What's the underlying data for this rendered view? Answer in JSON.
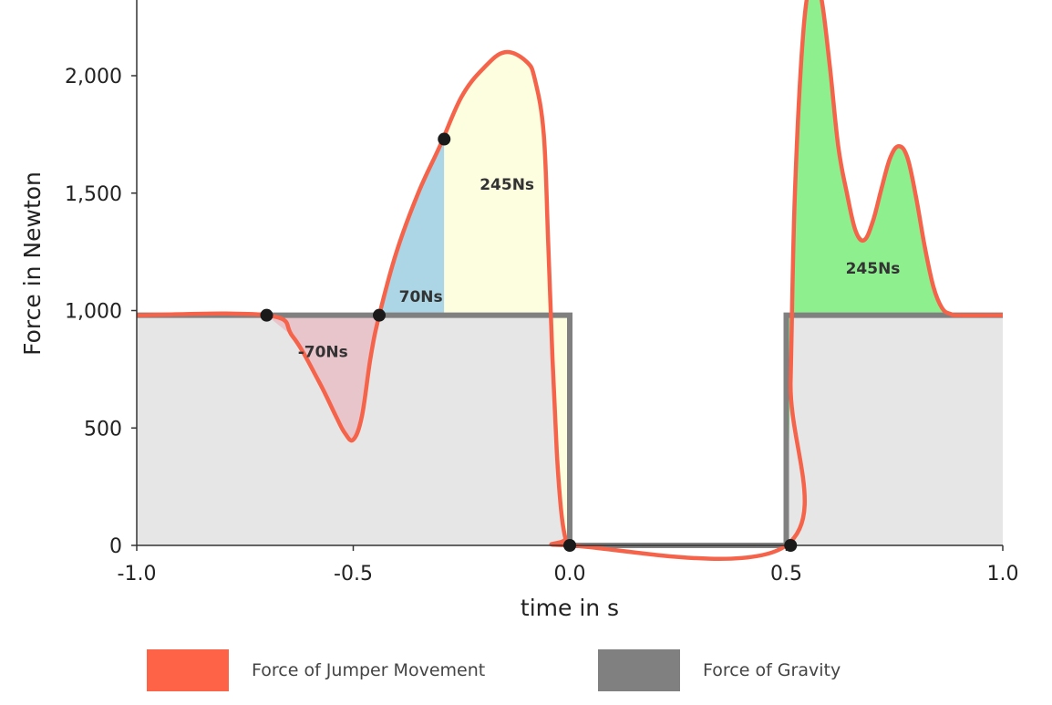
{
  "chart_data": {
    "type": "area",
    "xlabel": "time in s",
    "ylabel": "Force in Newton",
    "xlim": [
      -1.0,
      1.0
    ],
    "ylim": [
      0,
      2400
    ],
    "x_ticks": [
      -1.0,
      -0.5,
      0.0,
      0.5,
      1.0
    ],
    "x_tick_labels": [
      "-1.0",
      "-0.5",
      "0.0",
      "0.5",
      "1.0"
    ],
    "y_ticks": [
      0,
      500,
      1000,
      1500,
      2000
    ],
    "y_tick_labels": [
      "0",
      "500",
      "1,000",
      "1,500",
      "2,000"
    ],
    "series": [
      {
        "name": "Force of Jumper Movement",
        "color": "#f4634a",
        "x": [
          -1.0,
          -0.7,
          -0.64,
          -0.58,
          -0.54,
          -0.52,
          -0.5,
          -0.48,
          -0.46,
          -0.44,
          -0.4,
          -0.35,
          -0.3,
          -0.25,
          -0.2,
          -0.15,
          -0.1,
          -0.08,
          -0.06,
          -0.05,
          -0.04,
          -0.03,
          -0.02,
          -0.01,
          0.0,
          0.5,
          0.51,
          0.52,
          0.54,
          0.56,
          0.58,
          0.6,
          0.62,
          0.64,
          0.66,
          0.68,
          0.7,
          0.72,
          0.74,
          0.76,
          0.78,
          0.8,
          0.82,
          0.84,
          0.86,
          0.88,
          0.9,
          1.0
        ],
        "values": [
          980,
          980,
          890,
          700,
          550,
          480,
          450,
          550,
          800,
          980,
          1250,
          1500,
          1700,
          1910,
          2030,
          2100,
          2060,
          1980,
          1750,
          1300,
          800,
          400,
          150,
          30,
          0,
          0,
          700,
          1500,
          2200,
          2400,
          2340,
          2050,
          1700,
          1500,
          1340,
          1300,
          1380,
          1520,
          1650,
          1700,
          1650,
          1480,
          1270,
          1100,
          1010,
          985,
          980,
          980
        ]
      },
      {
        "name": "Force of Gravity",
        "color": "#808080",
        "x": [
          -1.0,
          0.0,
          0.0,
          0.5,
          0.5,
          1.0
        ],
        "values": [
          980,
          980,
          0,
          0,
          980,
          980
        ]
      }
    ],
    "shaded_regions": [
      {
        "label": "-70Ns",
        "x_start": -0.7,
        "x_end": -0.44,
        "color": "#e8c4cb"
      },
      {
        "label": "70Ns",
        "x_start": -0.44,
        "x_end": -0.29,
        "color": "#acd6e6"
      },
      {
        "label": "245Ns",
        "x_start": -0.29,
        "x_end": 0.0,
        "color": "#fdfde0"
      },
      {
        "label": "245Ns",
        "x_start": 0.5,
        "x_end": 0.9,
        "color": "#8eef8e"
      }
    ],
    "marked_points": [
      {
        "x": -0.7,
        "y": 980
      },
      {
        "x": -0.44,
        "y": 980
      },
      {
        "x": -0.29,
        "y": 1730
      },
      {
        "x": 0.0,
        "y": 0
      },
      {
        "x": 0.51,
        "y": 0
      }
    ],
    "gravity_fill_color": "#e6e6e6",
    "legend_position": "bottom"
  },
  "legend": {
    "jumper_label": "Force of Jumper Movement",
    "gravity_label": "Force of Gravity",
    "jumper_color": "#ff6347",
    "gravity_color": "#808080"
  }
}
